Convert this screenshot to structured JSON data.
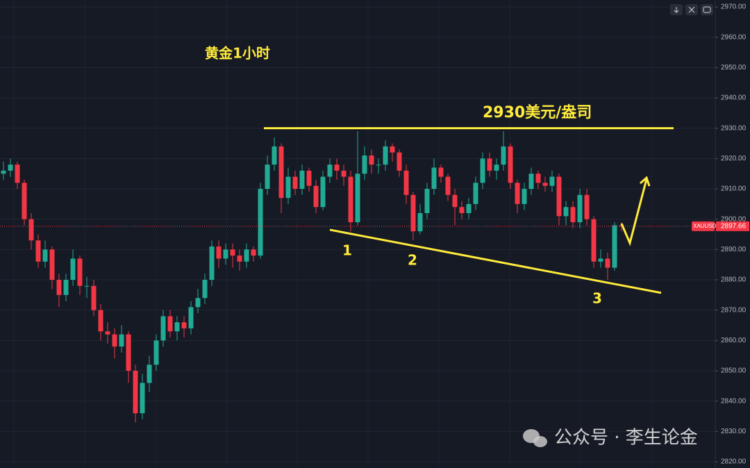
{
  "chart_data": {
    "type": "candlestick",
    "title": "黄金1小时",
    "up_color": "#22ab94",
    "down_color": "#f23645",
    "open": [
      2915,
      2916,
      2918,
      2912,
      2900,
      2893,
      2886,
      2890,
      2880,
      2875,
      2880,
      2887,
      2878,
      2878,
      2870,
      2863,
      2862,
      2858,
      2862,
      2850,
      2836,
      2846,
      2852,
      2860,
      2868,
      2863,
      2866,
      2864,
      2871,
      2874,
      2880,
      2891,
      2887,
      2890,
      2888,
      2886,
      2890,
      2888,
      2910,
      2918,
      2924,
      2907,
      2914,
      2910,
      2916,
      2911,
      2904,
      2914,
      2918,
      2916,
      2914,
      2899,
      2915,
      2921,
      2918,
      2918,
      2924,
      2922,
      2916,
      2908,
      2896,
      2902,
      2910,
      2917,
      2914,
      2908,
      2904,
      2902,
      2905,
      2912,
      2920,
      2916,
      2918,
      2924,
      2912,
      2905,
      2910,
      2915,
      2912,
      2911,
      2914,
      2901,
      2904,
      2899,
      2908,
      2900,
      2886,
      2887,
      2884,
      2898
    ],
    "high": [
      2919,
      2920,
      2919,
      2913,
      2902,
      2895,
      2893,
      2891,
      2882,
      2882,
      2890,
      2888,
      2881,
      2880,
      2872,
      2866,
      2864,
      2865,
      2863,
      2852,
      2849,
      2855,
      2862,
      2870,
      2870,
      2868,
      2868,
      2873,
      2877,
      2882,
      2893,
      2893,
      2892,
      2892,
      2890,
      2892,
      2891,
      2912,
      2921,
      2927,
      2925,
      2917,
      2916,
      2918,
      2917,
      2913,
      2916,
      2920,
      2920,
      2918,
      2916,
      2929,
      2924,
      2923,
      2920,
      2926,
      2925,
      2923,
      2918,
      2909,
      2905,
      2912,
      2920,
      2918,
      2915,
      2910,
      2906,
      2907,
      2914,
      2922,
      2922,
      2920,
      2929,
      2925,
      2913,
      2912,
      2917,
      2916,
      2914,
      2916,
      2915,
      2906,
      2906,
      2910,
      2910,
      2901,
      2890,
      2889,
      2899,
      2899
    ],
    "low": [
      2913,
      2914,
      2910,
      2898,
      2890,
      2884,
      2884,
      2877,
      2871,
      2873,
      2878,
      2875,
      2874,
      2868,
      2860,
      2859,
      2854,
      2856,
      2846,
      2833,
      2834,
      2843,
      2850,
      2858,
      2861,
      2860,
      2861,
      2862,
      2869,
      2872,
      2878,
      2884,
      2885,
      2884,
      2883,
      2884,
      2886,
      2887,
      2908,
      2916,
      2902,
      2905,
      2908,
      2908,
      2909,
      2902,
      2903,
      2912,
      2913,
      2911,
      2896,
      2898,
      2913,
      2915,
      2915,
      2916,
      2919,
      2914,
      2905,
      2893,
      2895,
      2900,
      2908,
      2912,
      2906,
      2898,
      2900,
      2900,
      2903,
      2910,
      2914,
      2913,
      2916,
      2910,
      2902,
      2903,
      2908,
      2910,
      2909,
      2909,
      2898,
      2898,
      2897,
      2897,
      2898,
      2884,
      2884,
      2880,
      2883,
      2896
    ],
    "close": [
      2916,
      2918,
      2912,
      2900,
      2893,
      2886,
      2890,
      2880,
      2875,
      2880,
      2887,
      2878,
      2878,
      2870,
      2863,
      2862,
      2858,
      2862,
      2850,
      2836,
      2846,
      2852,
      2860,
      2868,
      2863,
      2866,
      2864,
      2871,
      2874,
      2880,
      2891,
      2887,
      2890,
      2888,
      2886,
      2890,
      2888,
      2910,
      2918,
      2924,
      2907,
      2914,
      2910,
      2916,
      2911,
      2904,
      2914,
      2918,
      2916,
      2914,
      2899,
      2915,
      2921,
      2918,
      2918,
      2924,
      2922,
      2916,
      2908,
      2896,
      2902,
      2910,
      2917,
      2914,
      2908,
      2904,
      2902,
      2905,
      2912,
      2920,
      2916,
      2918,
      2924,
      2912,
      2905,
      2910,
      2915,
      2912,
      2911,
      2914,
      2901,
      2904,
      2899,
      2908,
      2900,
      2886,
      2887,
      2884,
      2898,
      2897.66
    ],
    "ylim": [
      2820,
      2970
    ],
    "yticks": [
      {
        "value": 2820,
        "label": "2820.00"
      },
      {
        "value": 2830,
        "label": "2830.00"
      },
      {
        "value": 2840,
        "label": "2840.00"
      },
      {
        "value": 2850,
        "label": "2850.00"
      },
      {
        "value": 2860,
        "label": "2860.00"
      },
      {
        "value": 2870,
        "label": "2870.00"
      },
      {
        "value": 2880,
        "label": "2880.00"
      },
      {
        "value": 2890,
        "label": "2890.00"
      },
      {
        "value": 2900,
        "label": "2900.00"
      },
      {
        "value": 2910,
        "label": "2910.00"
      },
      {
        "value": 2920,
        "label": "2920.00"
      },
      {
        "value": 2930,
        "label": "2930.00"
      },
      {
        "value": 2940,
        "label": "2940.00"
      },
      {
        "value": 2950,
        "label": "2950.00"
      },
      {
        "value": 2960,
        "label": "2960.00"
      },
      {
        "value": 2970,
        "label": "2970.00"
      }
    ],
    "grid": true,
    "last_price": {
      "symbol": "XAUUSD",
      "value": 2897.66
    },
    "annotations": {
      "resistance_label": "2930美元/盎司",
      "resistance": 2930,
      "support_start": 2896.5,
      "support_end": 2875.7,
      "points": [
        "1",
        "2",
        "3"
      ]
    },
    "watermark": "公众号 · 李生论金"
  }
}
